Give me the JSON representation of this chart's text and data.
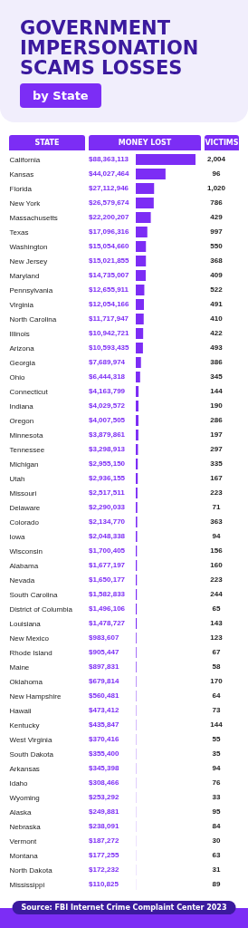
{
  "chart_data": [
    {
      "type": "bar",
      "orientation": "horizontal",
      "title": "GOVERNMENT IMPERSONATION SCAMS LOSSES",
      "subtitle": "by State",
      "ylabel": "STATE",
      "xlabel": "MONEY LOST",
      "color": "#7c2df5",
      "categories": [
        "California",
        "Kansas",
        "Florida",
        "New York",
        "Massachusetts",
        "Texas",
        "Washington",
        "New Jersey",
        "Maryland",
        "Pennsylvania",
        "Virginia",
        "North Carolina",
        "Illinois",
        "Arizona",
        "Georgia",
        "Ohio",
        "Connecticut",
        "Indiana",
        "Oregon",
        "Minnesota",
        "Tennessee",
        "Michigan",
        "Utah",
        "Missouri",
        "Delaware",
        "Colorado",
        "Iowa",
        "Wisconsin",
        "Alabama",
        "Nevada",
        "South Carolina",
        "District of Columbia",
        "Louisiana",
        "New Mexico",
        "Rhode Island",
        "Maine",
        "Oklahoma",
        "New Hampshire",
        "Hawaii",
        "Kentucky",
        "West Virginia",
        "South Dakota",
        "Arkansas",
        "Idaho",
        "Wyoming",
        "Alaska",
        "Nebraska",
        "Vermont",
        "Montana",
        "North Dakota",
        "Mississippi"
      ],
      "values": [
        88363113,
        44027464,
        27112946,
        26579674,
        22200207,
        17096316,
        15054660,
        15021855,
        14735007,
        12655911,
        12054166,
        11717947,
        10942721,
        10593435,
        7689974,
        6444318,
        4163799,
        4029572,
        4007505,
        3879861,
        3298913,
        2955150,
        2936155,
        2517511,
        2290033,
        2134770,
        2048338,
        1700405,
        1677197,
        1650177,
        1582833,
        1496106,
        1478727,
        983607,
        905447,
        897831,
        679814,
        560481,
        473412,
        435847,
        370416,
        355400,
        345398,
        308466,
        253292,
        249881,
        238091,
        187272,
        177255,
        172232,
        110825
      ],
      "value_labels": [
        "$88,363,113",
        "$44,027,464",
        "$27,112,946",
        "$26,579,674",
        "$22,200,207",
        "$17,096,316",
        "$15,054,660",
        "$15,021,855",
        "$14,735,007",
        "$12,655,911",
        "$12,054,166",
        "$11,717,947",
        "$10,942,721",
        "$10,593,435",
        "$7,689,974",
        "$6,444,318",
        "$4,163,799",
        "$4,029,572",
        "$4,007,505",
        "$3,879,861",
        "$3,298,913",
        "$2,955,150",
        "$2,936,155",
        "$2,517,511",
        "$2,290,033",
        "$2,134,770",
        "$2,048,338",
        "$1,700,405",
        "$1,677,197",
        "$1,650,177",
        "$1,582,833",
        "$1,496,106",
        "$1,478,727",
        "$983,607",
        "$905,447",
        "$897,831",
        "$679,814",
        "$560,481",
        "$473,412",
        "$435,847",
        "$370,416",
        "$355,400",
        "$345,398",
        "$308,466",
        "$253,292",
        "$249,881",
        "$238,091",
        "$187,272",
        "$177,255",
        "$172,232",
        "$110,825"
      ],
      "annotations": [
        "Source: FBI Internet Crime Complaint Center 2023"
      ]
    },
    {
      "type": "other",
      "title": "VICTIMS",
      "value_labels": [
        "2,004",
        "96",
        "1,020",
        "786",
        "429",
        "997",
        "550",
        "368",
        "409",
        "522",
        "491",
        "410",
        "422",
        "493",
        "386",
        "345",
        "144",
        "190",
        "286",
        "197",
        "297",
        "335",
        "167",
        "223",
        "71",
        "363",
        "94",
        "156",
        "160",
        "223",
        "244",
        "65",
        "143",
        "123",
        "67",
        "58",
        "170",
        "64",
        "73",
        "144",
        "55",
        "35",
        "94",
        "76",
        "33",
        "95",
        "84",
        "30",
        "63",
        "31",
        "89"
      ],
      "values": [
        2004,
        96,
        1020,
        786,
        429,
        997,
        550,
        368,
        409,
        522,
        491,
        410,
        422,
        493,
        386,
        345,
        144,
        190,
        286,
        197,
        297,
        335,
        167,
        223,
        71,
        363,
        94,
        156,
        160,
        223,
        244,
        65,
        143,
        123,
        67,
        58,
        170,
        64,
        73,
        144,
        55,
        35,
        94,
        76,
        33,
        95,
        84,
        30,
        63,
        31,
        89
      ]
    }
  ]
}
